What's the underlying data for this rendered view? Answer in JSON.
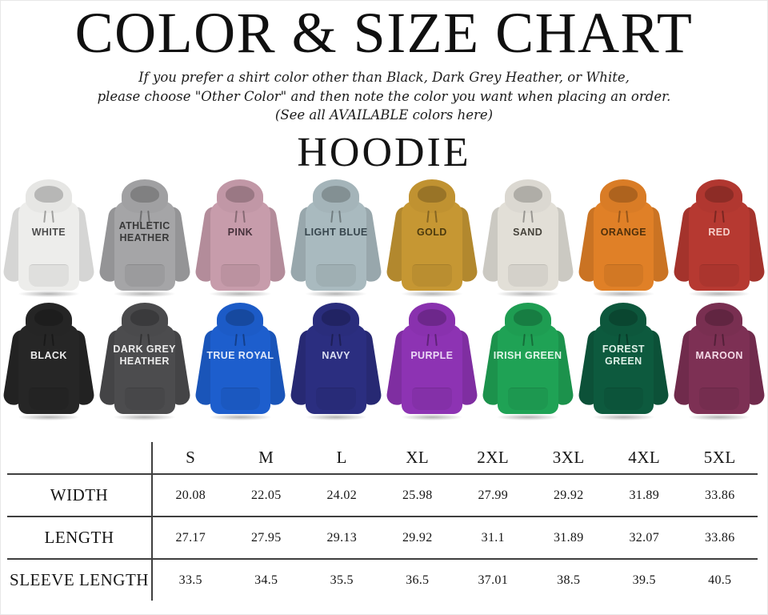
{
  "page": {
    "title": "COLOR & SIZE CHART",
    "subtitle_lines": [
      "If you prefer a shirt color other than Black, Dark Grey Heather, or White,",
      "please choose \"Other Color\" and then note the color you want when placing an order.",
      "(See all AVAILABLE colors here)"
    ],
    "product_heading": "HOODIE"
  },
  "hoodies": {
    "rows": [
      [
        {
          "name": "WHITE",
          "color": "#ededeb",
          "label_color": "#4d4d4d"
        },
        {
          "name": "ATHLETIC HEATHER",
          "color": "#a5a5a7",
          "label_color": "#393939"
        },
        {
          "name": "PINK",
          "color": "#c79cab",
          "label_color": "#47323c"
        },
        {
          "name": "LIGHT BLUE",
          "color": "#a9babf",
          "label_color": "#37464d"
        },
        {
          "name": "GOLD",
          "color": "#c69733",
          "label_color": "#4c3a0e"
        },
        {
          "name": "SAND",
          "color": "#e2dfd7",
          "label_color": "#45423a"
        },
        {
          "name": "ORANGE",
          "color": "#e08027",
          "label_color": "#4f300b"
        },
        {
          "name": "RED",
          "color": "#b63931",
          "label_color": "#f6d0cb"
        }
      ],
      [
        {
          "name": "BLACK",
          "color": "#262626",
          "label_color": "#ececec"
        },
        {
          "name": "DARK GREY HEATHER",
          "color": "#4c4c4e",
          "label_color": "#ececec"
        },
        {
          "name": "TRUE ROYAL",
          "color": "#1d5ecd",
          "label_color": "#e2eaf9"
        },
        {
          "name": "NAVY",
          "color": "#2b2e80",
          "label_color": "#dcdff2"
        },
        {
          "name": "PURPLE",
          "color": "#8d33b3",
          "label_color": "#ecd9f6"
        },
        {
          "name": "IRISH GREEN",
          "color": "#1fa255",
          "label_color": "#e2f5e9"
        },
        {
          "name": "FOREST GREEN",
          "color": "#0d5a3e",
          "label_color": "#dcefe6"
        },
        {
          "name": "MAROON",
          "color": "#7d3054",
          "label_color": "#f4d9e6"
        }
      ]
    ]
  },
  "chart_data": {
    "type": "table",
    "title": "COLOR & SIZE CHART — HOODIE",
    "columns": [
      "S",
      "M",
      "L",
      "XL",
      "2XL",
      "3XL",
      "4XL",
      "5XL"
    ],
    "rows": [
      {
        "label": "WIDTH",
        "values": [
          "20.08",
          "22.05",
          "24.02",
          "25.98",
          "27.99",
          "29.92",
          "31.89",
          "33.86"
        ]
      },
      {
        "label": "LENGTH",
        "values": [
          "27.17",
          "27.95",
          "29.13",
          "29.92",
          "31.1",
          "31.89",
          "32.07",
          "33.86"
        ]
      },
      {
        "label": "SLEEVE LENGTH",
        "values": [
          "33.5",
          "34.5",
          "35.5",
          "36.5",
          "37.01",
          "38.5",
          "39.5",
          "40.5"
        ]
      }
    ]
  }
}
